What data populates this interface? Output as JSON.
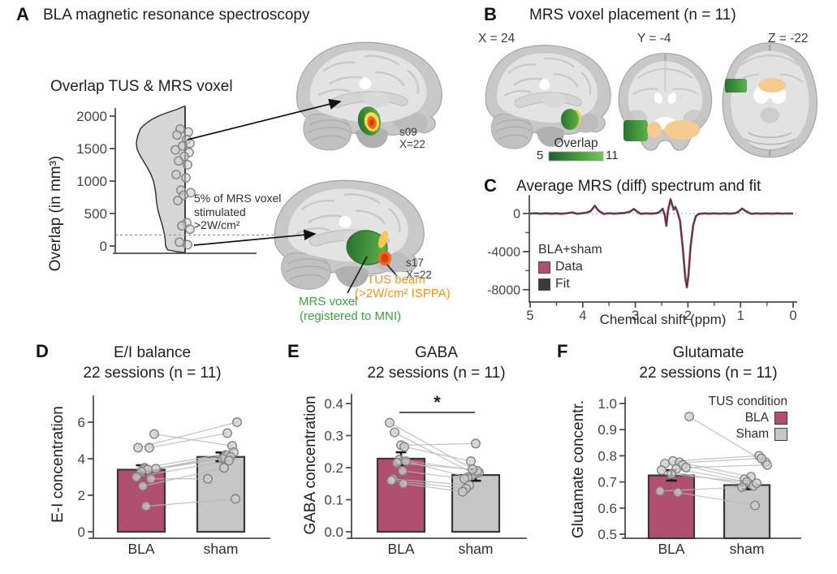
{
  "colors": {
    "accent_pink": "#b14f71",
    "bar_gray": "#c6c6c6",
    "bar_stroke": "#383838",
    "axis": "#4d4d4d",
    "tick_text": "#454545",
    "point_fill": "#cccccc",
    "point_stroke": "#7f7f7f",
    "line_gray": "#b8b8b8",
    "violin_fill": "#d6d6d6",
    "violin_stroke": "#2d2d2d",
    "error_bar": "#1b1b1b",
    "fit_dark": "#3a3a3a",
    "green_label": "#3ba33b",
    "orange_label": "#f6921e",
    "overlap_green_dark": "#1c5f2a",
    "overlap_green_light": "#72c854",
    "voxel_orange": "#f6cb90",
    "hot_core": "#f2671f",
    "hot_ring": "#ffd84d"
  },
  "panelA": {
    "letter": "A",
    "title": "BLA magnetic resonance spectroscopy",
    "subtitle": "Overlap TUS & MRS voxel",
    "ylabel": "Overlap (in mm³)",
    "annotation_lines": [
      "5% of MRS voxel",
      "stimulated",
      ">2W/cm²"
    ],
    "brain_top_id": "s09",
    "brain_top_coord": "X=22",
    "brain_bottom_id": "s17",
    "brain_bottom_coord": "X=22",
    "tus_beam_label": "TUS beam",
    "tus_beam_sub": "(>2W/cm² ISPPA)",
    "mrs_voxel_label": "MRS voxel",
    "mrs_voxel_sub": "(registered to MNI)"
  },
  "panelB": {
    "letter": "B",
    "title": "MRS voxel placement (n = 11)",
    "slices": [
      "X = 24",
      "Y = -4",
      "Z = -22"
    ],
    "colorbar_title": "Overlap",
    "colorbar_min": "5",
    "colorbar_max": "11"
  },
  "panelC": {
    "letter": "C",
    "title": "Average MRS (diff) spectrum and fit",
    "legend_title": "BLA+sham",
    "legend_data": "Data",
    "legend_fit": "Fit",
    "xlabel": "Chemical shift (ppm)"
  },
  "panelD": {
    "letter": "D",
    "title": "E/I balance",
    "subtitle": "22 sessions (n = 11)",
    "ylabel": "E-I concentration",
    "categories": [
      "BLA",
      "sham"
    ]
  },
  "panelE": {
    "letter": "E",
    "title": "GABA",
    "subtitle": "22 sessions (n = 11)",
    "ylabel": "GABA concentration",
    "categories": [
      "BLA",
      "sham"
    ],
    "significance": "*"
  },
  "panelF": {
    "letter": "F",
    "title": "Glutamate",
    "subtitle": "22 sessions (n = 11)",
    "ylabel": "Glutamate concentr.",
    "categories": [
      "BLA",
      "sham"
    ],
    "legend_title": "TUS condition",
    "legend_items": [
      "BLA",
      "Sham"
    ]
  },
  "chart_data": [
    {
      "id": "overlap_violin",
      "type": "scatter",
      "title": "Overlap TUS & MRS voxel",
      "ylabel": "Overlap (in mm³)",
      "ylim": [
        0,
        2000
      ],
      "yticks": [
        0,
        500,
        1000,
        1500,
        2000
      ],
      "threshold": 170,
      "threshold_note": "5% of MRS voxel stimulated >2W/cm²",
      "values": [
        1800,
        1755,
        1710,
        1640,
        1580,
        1540,
        1480,
        1440,
        1380,
        1310,
        1250,
        1100,
        1050,
        860,
        820,
        780,
        700,
        360,
        310,
        260,
        60,
        20
      ],
      "density": [
        [
          2150,
          0.02
        ],
        [
          2100,
          0.18
        ],
        [
          2050,
          0.38
        ],
        [
          2000,
          0.55
        ],
        [
          1950,
          0.68
        ],
        [
          1900,
          0.78
        ],
        [
          1850,
          0.86
        ],
        [
          1800,
          0.92
        ],
        [
          1700,
          0.97
        ],
        [
          1600,
          1.0
        ],
        [
          1500,
          0.99
        ],
        [
          1400,
          0.93
        ],
        [
          1300,
          0.85
        ],
        [
          1200,
          0.77
        ],
        [
          1100,
          0.7
        ],
        [
          1000,
          0.65
        ],
        [
          900,
          0.62
        ],
        [
          800,
          0.6
        ],
        [
          700,
          0.59
        ],
        [
          600,
          0.57
        ],
        [
          500,
          0.54
        ],
        [
          400,
          0.5
        ],
        [
          300,
          0.46
        ],
        [
          200,
          0.43
        ],
        [
          100,
          0.41
        ],
        [
          0,
          0.4
        ],
        [
          -60,
          0.36
        ],
        [
          -90,
          0.15
        ],
        [
          -100,
          0.02
        ]
      ]
    },
    {
      "id": "mrs_spectrum",
      "type": "line",
      "title": "Average MRS (diff) spectrum and fit",
      "xlabel": "Chemical shift (ppm)",
      "ylim": [
        -8500,
        1600
      ],
      "yticks": [
        0,
        -4000,
        -8000
      ],
      "yminor": [
        -2000,
        -6000
      ],
      "xticks": [
        5,
        4,
        3,
        2,
        1,
        0
      ],
      "xminor": [
        4.5,
        3.5,
        2.5,
        1.5,
        0.5
      ],
      "legend_title": "BLA+sham",
      "series": [
        {
          "name": "Data"
        },
        {
          "name": "Fit"
        }
      ],
      "points": [
        [
          5.0,
          0
        ],
        [
          4.9,
          30
        ],
        [
          4.8,
          -20
        ],
        [
          4.7,
          25
        ],
        [
          4.6,
          -15
        ],
        [
          4.5,
          20
        ],
        [
          4.4,
          -25
        ],
        [
          4.3,
          30
        ],
        [
          4.2,
          120
        ],
        [
          4.1,
          -30
        ],
        [
          4.0,
          40
        ],
        [
          3.95,
          60
        ],
        [
          3.85,
          250
        ],
        [
          3.77,
          820
        ],
        [
          3.7,
          300
        ],
        [
          3.6,
          -40
        ],
        [
          3.5,
          30
        ],
        [
          3.4,
          -20
        ],
        [
          3.3,
          25
        ],
        [
          3.2,
          60
        ],
        [
          3.1,
          200
        ],
        [
          3.03,
          480
        ],
        [
          2.95,
          150
        ],
        [
          2.9,
          -30
        ],
        [
          2.8,
          20
        ],
        [
          2.7,
          -20
        ],
        [
          2.6,
          30
        ],
        [
          2.55,
          120
        ],
        [
          2.48,
          500
        ],
        [
          2.44,
          -200
        ],
        [
          2.41,
          -1300
        ],
        [
          2.38,
          300
        ],
        [
          2.33,
          1500
        ],
        [
          2.3,
          900
        ],
        [
          2.27,
          400
        ],
        [
          2.24,
          700
        ],
        [
          2.2,
          200
        ],
        [
          2.15,
          -800
        ],
        [
          2.1,
          -3500
        ],
        [
          2.05,
          -6800
        ],
        [
          2.02,
          -7750
        ],
        [
          1.99,
          -6500
        ],
        [
          1.95,
          -3500
        ],
        [
          1.9,
          -1200
        ],
        [
          1.85,
          -300
        ],
        [
          1.8,
          -50
        ],
        [
          1.7,
          20
        ],
        [
          1.6,
          -20
        ],
        [
          1.5,
          15
        ],
        [
          1.4,
          -15
        ],
        [
          1.3,
          20
        ],
        [
          1.2,
          -20
        ],
        [
          1.1,
          30
        ],
        [
          1.05,
          150
        ],
        [
          0.97,
          520
        ],
        [
          0.9,
          250
        ],
        [
          0.8,
          -30
        ],
        [
          0.7,
          20
        ],
        [
          0.6,
          -15
        ],
        [
          0.5,
          15
        ],
        [
          0.4,
          -20
        ],
        [
          0.3,
          15
        ],
        [
          0.2,
          -10
        ],
        [
          0.1,
          10
        ],
        [
          0.0,
          0
        ]
      ]
    },
    {
      "id": "ei_balance",
      "type": "bar",
      "title": "E/I balance",
      "subtitle": "22 sessions (n = 11)",
      "ylabel": "E-I concentration",
      "categories": [
        "BLA",
        "sham"
      ],
      "ylim": [
        0,
        7
      ],
      "yticks": [
        0,
        2,
        4,
        6
      ],
      "means": [
        3.4,
        4.1
      ],
      "errors": [
        0.24,
        0.24
      ],
      "pairs": [
        [
          5.35,
          4.7
        ],
        [
          4.6,
          6.0
        ],
        [
          4.6,
          5.4
        ],
        [
          3.5,
          4.35
        ],
        [
          3.45,
          4.2
        ],
        [
          3.4,
          4.1
        ],
        [
          3.3,
          4.0
        ],
        [
          3.0,
          3.9
        ],
        [
          2.9,
          2.9
        ],
        [
          2.5,
          3.5
        ],
        [
          1.4,
          1.8
        ]
      ]
    },
    {
      "id": "gaba",
      "type": "bar",
      "title": "GABA",
      "subtitle": "22 sessions (n = 11)",
      "ylabel": "GABA concentration",
      "categories": [
        "BLA",
        "sham"
      ],
      "ylim": [
        0,
        0.42
      ],
      "yticks": [
        "0.0",
        "0.1",
        "0.2",
        "0.3",
        "0.4"
      ],
      "means": [
        0.228,
        0.177
      ],
      "errors": [
        0.02,
        0.018
      ],
      "significance": "*",
      "pairs": [
        [
          0.34,
          0.185
        ],
        [
          0.31,
          0.18
        ],
        [
          0.27,
          0.275
        ],
        [
          0.265,
          0.22
        ],
        [
          0.225,
          0.19
        ],
        [
          0.22,
          0.17
        ],
        [
          0.215,
          0.195
        ],
        [
          0.19,
          0.165
        ],
        [
          0.165,
          0.145
        ],
        [
          0.16,
          0.135
        ],
        [
          0.15,
          0.125
        ]
      ]
    },
    {
      "id": "glutamate",
      "type": "bar",
      "title": "Glutamate",
      "subtitle": "22 sessions (n = 11)",
      "ylabel": "Glutamate concentr.",
      "categories": [
        "BLA",
        "sham"
      ],
      "ylim": [
        0.5,
        1.0
      ],
      "yticks": [
        "0.5",
        "0.6",
        "0.7",
        "0.8",
        "0.9",
        "1.0"
      ],
      "means": [
        0.725,
        0.688
      ],
      "errors": [
        0.02,
        0.016
      ],
      "legend_title": "TUS condition",
      "legend_items": [
        "BLA",
        "Sham"
      ],
      "pairs": [
        [
          0.95,
          0.775
        ],
        [
          0.78,
          0.8
        ],
        [
          0.775,
          0.72
        ],
        [
          0.77,
          0.79
        ],
        [
          0.765,
          0.71
        ],
        [
          0.755,
          0.765
        ],
        [
          0.75,
          0.7
        ],
        [
          0.745,
          0.685
        ],
        [
          0.73,
          0.695
        ],
        [
          0.665,
          0.68
        ],
        [
          0.66,
          0.61
        ]
      ]
    }
  ]
}
